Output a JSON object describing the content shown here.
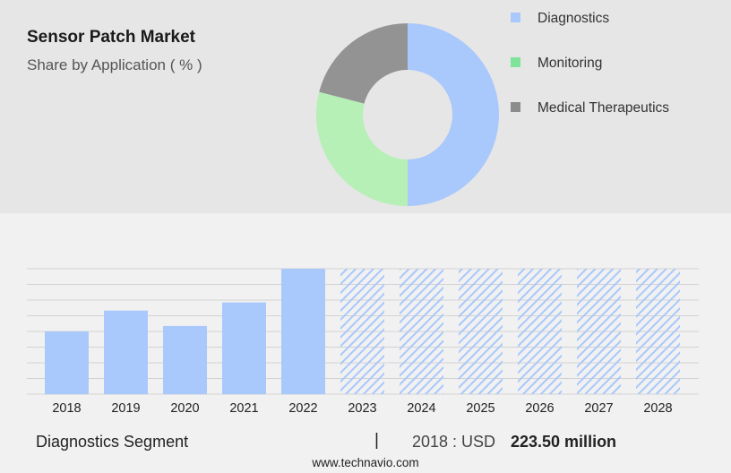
{
  "header": {
    "title": "Sensor Patch Market",
    "subtitle": "Share by Application ( % )"
  },
  "legend": [
    {
      "label": "Diagnostics",
      "color": "#a9c8fb"
    },
    {
      "label": "Monitoring",
      "color": "#7fe39a"
    },
    {
      "label": "Medical Therapeutics",
      "color": "#8c8c8c"
    }
  ],
  "chart_data": [
    {
      "type": "pie",
      "donut": true,
      "categories": [
        "Diagnostics",
        "Monitoring",
        "Medical Therapeutics"
      ],
      "values": [
        50,
        29,
        21
      ],
      "colors": [
        "#a9c8fb",
        "#b6f0b6",
        "#939393"
      ]
    },
    {
      "type": "bar",
      "categories": [
        "2018",
        "2019",
        "2020",
        "2021",
        "2022",
        "2023",
        "2024",
        "2025",
        "2026",
        "2027",
        "2028"
      ],
      "values": [
        223.5,
        298,
        243,
        327,
        447,
        null,
        null,
        null,
        null,
        null,
        null
      ],
      "forecast": [
        "2023",
        "2024",
        "2025",
        "2026",
        "2027",
        "2028"
      ],
      "ylim": [
        0,
        447
      ],
      "grid": true,
      "bar_color": "#a9c8fb",
      "forecast_pattern": "diagonal-hatch"
    }
  ],
  "footer": {
    "segment_label": "Diagnostics Segment",
    "separator": "|",
    "year_label": "2018 : USD",
    "value": "223.50 million"
  },
  "source": "www.technavio.com"
}
